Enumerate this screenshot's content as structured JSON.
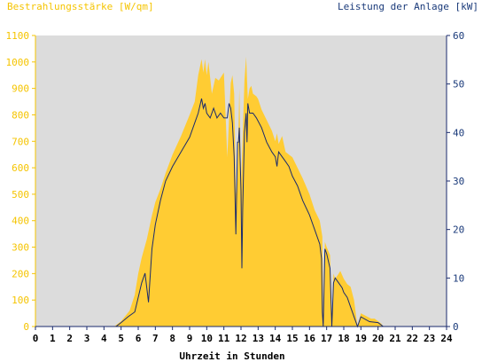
{
  "chart_data": {
    "type": "area",
    "left_title": "Bestrahlungsstärke [W/qm]",
    "right_title": "Leistung der Anlage [kW]",
    "xlabel": "Uhrzeit in Stunden",
    "xlim": [
      0,
      24
    ],
    "ylim_left": [
      0,
      1100
    ],
    "ylim_right": [
      0,
      60
    ],
    "x_ticks": [
      "0",
      "1",
      "2",
      "3",
      "4",
      "5",
      "6",
      "7",
      "8",
      "9",
      "10",
      "11",
      "12",
      "13",
      "14",
      "15",
      "16",
      "17",
      "18",
      "19",
      "20",
      "21",
      "22",
      "23",
      "24"
    ],
    "y_ticks_left": [
      "0",
      "100",
      "200",
      "300",
      "400",
      "500",
      "600",
      "700",
      "800",
      "900",
      "1000",
      "1100"
    ],
    "y_ticks_right": [
      "0",
      "10",
      "20",
      "30",
      "40",
      "50",
      "60"
    ],
    "grid": false,
    "colors": {
      "plot_bg": "#dcdcdc",
      "irradiance_fill": "#ffcc33",
      "irradiance_text": "#f5c400",
      "power_line": "#1a2a6c",
      "axis_right_text": "#1a3a7a",
      "axis_left": "#f5c400"
    },
    "series": [
      {
        "name": "Bestrahlungsstärke [W/qm]",
        "axis": "left",
        "style": "area",
        "x": [
          0,
          4.6,
          5.0,
          5.5,
          5.8,
          6.0,
          6.2,
          6.5,
          6.8,
          7.0,
          7.3,
          7.6,
          8.0,
          8.5,
          9.0,
          9.3,
          9.5,
          9.7,
          9.8,
          9.9,
          10.0,
          10.1,
          10.3,
          10.5,
          10.7,
          11.0,
          11.2,
          11.4,
          11.5,
          11.6,
          11.7,
          11.8,
          11.9,
          12.0,
          12.1,
          12.2,
          12.3,
          12.4,
          12.5,
          12.6,
          12.7,
          12.9,
          13.0,
          13.2,
          13.5,
          13.8,
          14.0,
          14.1,
          14.2,
          14.4,
          14.6,
          14.8,
          15.0,
          15.3,
          15.6,
          16.0,
          16.3,
          16.6,
          16.75,
          16.8,
          16.9,
          17.0,
          17.2,
          17.3,
          17.4,
          17.5,
          17.7,
          17.8,
          18.0,
          18.2,
          18.4,
          18.6,
          18.8,
          19.0,
          19.3,
          19.6,
          19.8,
          20.0,
          20.2,
          20.3,
          24
        ],
        "values": [
          0,
          0,
          20,
          60,
          120,
          200,
          260,
          330,
          420,
          470,
          520,
          580,
          650,
          720,
          800,
          850,
          950,
          1010,
          960,
          1010,
          950,
          1000,
          880,
          940,
          930,
          960,
          640,
          920,
          950,
          880,
          500,
          560,
          900,
          540,
          720,
          930,
          1020,
          860,
          900,
          910,
          880,
          870,
          860,
          820,
          780,
          740,
          700,
          730,
          690,
          720,
          660,
          650,
          640,
          600,
          560,
          500,
          440,
          400,
          340,
          0,
          320,
          300,
          270,
          0,
          200,
          180,
          200,
          210,
          180,
          160,
          150,
          100,
          0,
          50,
          40,
          30,
          30,
          20,
          10,
          0,
          0
        ]
      },
      {
        "name": "Leistung der Anlage [kW]",
        "axis": "right",
        "style": "line",
        "x": [
          0,
          4.7,
          5.0,
          5.4,
          5.8,
          6.0,
          6.2,
          6.4,
          6.6,
          6.8,
          7.0,
          7.3,
          7.6,
          8.0,
          8.5,
          9.0,
          9.3,
          9.5,
          9.7,
          9.8,
          9.9,
          10.0,
          10.2,
          10.4,
          10.6,
          10.8,
          11.0,
          11.2,
          11.3,
          11.4,
          11.5,
          11.6,
          11.7,
          11.8,
          11.85,
          11.9,
          12.0,
          12.05,
          12.1,
          12.2,
          12.3,
          12.35,
          12.4,
          12.5,
          12.7,
          12.9,
          13.2,
          13.5,
          13.8,
          14.0,
          14.1,
          14.2,
          14.4,
          14.6,
          14.8,
          15.0,
          15.3,
          15.6,
          16.0,
          16.3,
          16.6,
          16.7,
          16.75,
          16.8,
          16.9,
          17.0,
          17.2,
          17.3,
          17.4,
          17.5,
          17.7,
          17.9,
          18.0,
          18.2,
          18.4,
          18.6,
          18.8,
          19.0,
          19.5,
          20.0,
          20.3,
          24
        ],
        "values": [
          0,
          0,
          0.8,
          2,
          3,
          6,
          9,
          11,
          5,
          16,
          21,
          26,
          30,
          33,
          36,
          39,
          42,
          44,
          47,
          45,
          46,
          44,
          43,
          45,
          43,
          44,
          43,
          43,
          46,
          45,
          42,
          35,
          19,
          38,
          38,
          41,
          28,
          12,
          24,
          40,
          44,
          38,
          46,
          44,
          44,
          43,
          41,
          38,
          36,
          35,
          33,
          36,
          35,
          34,
          33,
          31,
          29,
          26,
          23,
          20,
          17,
          14,
          3,
          0,
          16,
          15,
          12,
          0,
          9,
          10,
          9,
          8,
          7,
          6,
          4,
          2,
          0,
          2,
          1,
          0.8,
          0,
          0
        ]
      }
    ]
  }
}
